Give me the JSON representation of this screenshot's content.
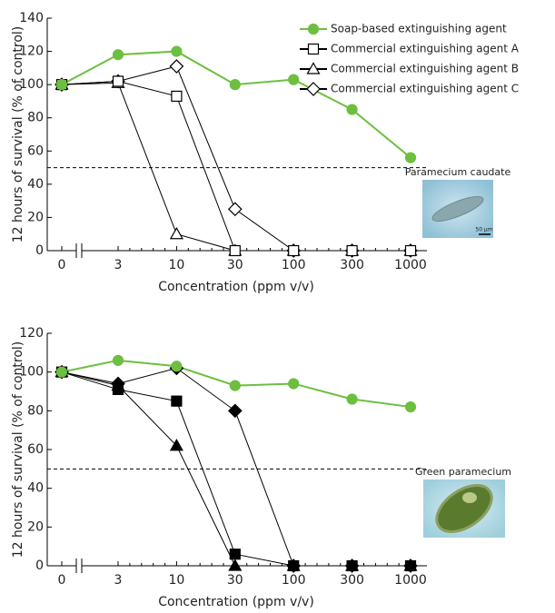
{
  "chart_data": [
    {
      "type": "line",
      "ylabel": "12 hours of survival (% of control)",
      "xlabel": "Concentration (ppm v/v)",
      "categories": [
        "0",
        "3",
        "10",
        "30",
        "100",
        "300",
        "1000"
      ],
      "ylim": [
        0,
        140
      ],
      "yticks": [
        0,
        20,
        40,
        60,
        80,
        100,
        120,
        140
      ],
      "threshold": 50,
      "image_label": "Paramecium caudate",
      "scale_label": "50 μm",
      "legend": "upper right",
      "series": [
        {
          "name": "Soap-based extinguishing agent",
          "color": "#6cbf3f",
          "marker": "circle",
          "filled": true,
          "values": [
            100,
            118,
            120,
            100,
            103,
            85,
            56
          ]
        },
        {
          "name": "Commercial extinguishing agent A",
          "color": "#000000",
          "marker": "square",
          "filled": false,
          "values": [
            100,
            102,
            93,
            0,
            0,
            0,
            0
          ]
        },
        {
          "name": "Commercial extinguishing agent B",
          "color": "#000000",
          "marker": "triangle",
          "filled": false,
          "values": [
            100,
            101,
            10,
            0,
            0,
            0,
            0
          ]
        },
        {
          "name": "Commercial extinguishing agent C",
          "color": "#000000",
          "marker": "diamond",
          "filled": false,
          "values": [
            100,
            102,
            111,
            25,
            0,
            0,
            0
          ]
        }
      ]
    },
    {
      "type": "line",
      "ylabel": "12 hours of survival (% of control)",
      "xlabel": "Concentration (ppm v/v)",
      "categories": [
        "0",
        "3",
        "10",
        "30",
        "100",
        "300",
        "1000"
      ],
      "ylim": [
        0,
        120
      ],
      "yticks": [
        0,
        20,
        40,
        60,
        80,
        100,
        120
      ],
      "threshold": 50,
      "image_label": "Green paramecium",
      "series": [
        {
          "color": "#6cbf3f",
          "marker": "circle",
          "filled": true,
          "values": [
            100,
            106,
            103,
            93,
            94,
            86,
            82
          ]
        },
        {
          "color": "#000000",
          "marker": "square",
          "filled": true,
          "values": [
            100,
            91,
            85,
            6,
            0,
            0,
            0
          ]
        },
        {
          "color": "#000000",
          "marker": "triangle",
          "filled": true,
          "values": [
            100,
            93,
            62,
            0,
            0,
            0,
            0
          ]
        },
        {
          "color": "#000000",
          "marker": "diamond",
          "filled": true,
          "values": [
            100,
            94,
            102,
            80,
            0,
            0,
            0
          ]
        }
      ]
    }
  ]
}
